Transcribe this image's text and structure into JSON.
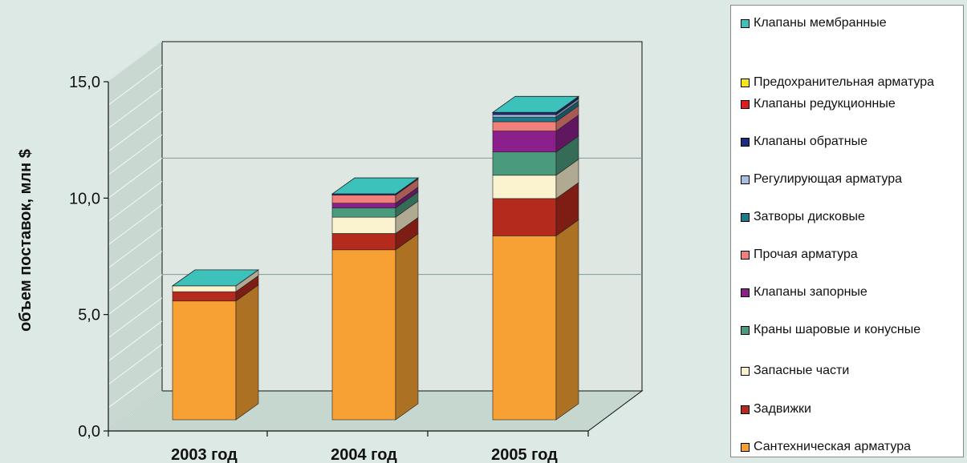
{
  "chart_data": {
    "type": "bar",
    "stacked": true,
    "three_d": true,
    "categories": [
      "2003 год",
      "2004 год",
      "2005 год"
    ],
    "ylabel": "объем поставок, млн $",
    "ylim": [
      0,
      15
    ],
    "yticks": [
      "0,0",
      "5,0",
      "10,0",
      "15,0"
    ],
    "legend_position": "right",
    "series": [
      {
        "name": "Сантехническая арматура",
        "color": "#f7a134",
        "values": [
          5.1,
          7.3,
          7.9
        ]
      },
      {
        "name": "Задвижки",
        "color": "#b42a1c",
        "values": [
          0.4,
          0.7,
          1.6
        ]
      },
      {
        "name": "Запасные части",
        "color": "#fbf3d0",
        "values": [
          0.25,
          0.7,
          1.0
        ]
      },
      {
        "name": "Краны шаровые и конусные",
        "color": "#4a9a7e",
        "values": [
          0,
          0.4,
          1.0
        ]
      },
      {
        "name": "Клапаны запорные",
        "color": "#8b1f8c",
        "values": [
          0,
          0.2,
          0.9
        ]
      },
      {
        "name": "Прочая арматура",
        "color": "#f17f7b",
        "values": [
          0,
          0.35,
          0.4
        ]
      },
      {
        "name": "Затворы дисковые",
        "color": "#1a7b8d",
        "values": [
          0,
          0,
          0.2
        ]
      },
      {
        "name": "Регулирующая арматура",
        "color": "#a8bfdc",
        "values": [
          0,
          0,
          0.1
        ]
      },
      {
        "name": "Клапаны обратные",
        "color": "#1d2b80",
        "values": [
          0,
          0.05,
          0.1
        ]
      },
      {
        "name": "Клапаны редукционные",
        "color": "#e01d1d",
        "values": [
          0,
          0,
          0
        ]
      },
      {
        "name": "Предохранительная арматура",
        "color": "#f2e51c",
        "values": [
          0,
          0,
          0
        ]
      },
      {
        "name": "Клапаны мембранные",
        "color": "#3cc1bb",
        "values": [
          0,
          0,
          0
        ]
      }
    ]
  }
}
